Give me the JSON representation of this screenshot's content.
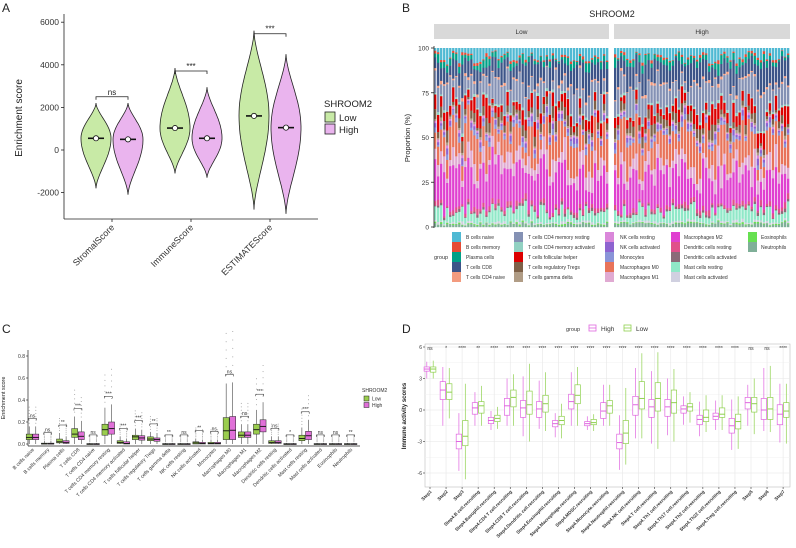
{
  "panels": {
    "a": "A",
    "b": "B",
    "c": "C",
    "d": "D"
  },
  "chart_data": [
    {
      "type": "violin",
      "panel": "A",
      "ylabel": "Enrichment score",
      "ylim": [
        -3000,
        6200
      ],
      "yticks": [
        -2000,
        0,
        2000,
        4000,
        6000
      ],
      "categories": [
        "StromalScore",
        "ImmuneScore",
        "ESTIMATEScore"
      ],
      "legend": {
        "title": "SHROOM2",
        "entries": [
          "Low",
          "High"
        ],
        "placement": "right"
      },
      "colors": {
        "Low": "#C8EAA6",
        "High": "#EAB4EE"
      },
      "significance": [
        "ns",
        "***",
        "***"
      ],
      "series": [
        {
          "name": "Low",
          "min": [
            -1800,
            -1100,
            -2800
          ],
          "median": [
            550,
            1030,
            1600
          ],
          "max": [
            2200,
            3850,
            5600
          ]
        },
        {
          "name": "High",
          "min": [
            -2100,
            -1300,
            -3000
          ],
          "median": [
            500,
            550,
            1050
          ],
          "max": [
            2200,
            2950,
            4500
          ]
        }
      ]
    },
    {
      "type": "stacked-bar",
      "panel": "B",
      "title": "SHROOM2",
      "facets": [
        "Low",
        "High"
      ],
      "ylabel": "Proportion (%)",
      "ylim": [
        0,
        100
      ],
      "yticks": [
        0,
        25,
        50,
        75,
        100
      ],
      "legend_title": "group",
      "cell_types": [
        {
          "name": "B cells naive",
          "color": "#4FB9D3",
          "mean": 5
        },
        {
          "name": "B cells memory",
          "color": "#E64B35",
          "mean": 1
        },
        {
          "name": "Plasma cells",
          "color": "#00A087",
          "mean": 3
        },
        {
          "name": "T cells CD8",
          "color": "#3C5488",
          "mean": 10
        },
        {
          "name": "T cells CD4 naive",
          "color": "#F39B7F",
          "mean": 1
        },
        {
          "name": "T cells CD4 memory resting",
          "color": "#8491B4",
          "mean": 12
        },
        {
          "name": "T cells CD4 memory activated",
          "color": "#91D1C2",
          "mean": 1
        },
        {
          "name": "T cells follicular helper",
          "color": "#DC0000",
          "mean": 6
        },
        {
          "name": "T cells regulatory Tregs",
          "color": "#7E6148",
          "mean": 4
        },
        {
          "name": "T cells gamma delta",
          "color": "#B09C85",
          "mean": 1
        },
        {
          "name": "NK cells resting",
          "color": "#DA87DA",
          "mean": 1
        },
        {
          "name": "NK cells activated",
          "color": "#8E63D0",
          "mean": 2
        },
        {
          "name": "Monocytes",
          "color": "#8A94D8",
          "mean": 2
        },
        {
          "name": "Macrophages M0",
          "color": "#E8735A",
          "mean": 14
        },
        {
          "name": "Macrophages M1",
          "color": "#E0AAD2",
          "mean": 7
        },
        {
          "name": "Macrophages M2",
          "color": "#E040D0",
          "mean": 18
        },
        {
          "name": "Dendritic cells resting",
          "color": "#E0508A",
          "mean": 2
        },
        {
          "name": "Dendritic cells activated",
          "color": "#8B6A78",
          "mean": 1
        },
        {
          "name": "Mast cells resting",
          "color": "#90E8C8",
          "mean": 6
        },
        {
          "name": "Mast cells activated",
          "color": "#D0D0E0",
          "mean": 1
        },
        {
          "name": "Eosinophils",
          "color": "#66E050",
          "mean": 0.5
        },
        {
          "name": "Neutrophils",
          "color": "#7FAF98",
          "mean": 1.5
        }
      ]
    },
    {
      "type": "box",
      "panel": "C",
      "ylabel": "Enrichment score",
      "ylim": [
        0,
        0.82
      ],
      "yticks": [
        "0.0",
        "0.2",
        "0.4",
        "0.6",
        "0.8"
      ],
      "legend": {
        "title": "SHROOM2",
        "entries": [
          "Low",
          "High"
        ],
        "placement": "right"
      },
      "colors": {
        "Low": "#9ACD4E",
        "High": "#E070D8"
      },
      "categories": [
        "B cells naive",
        "B cells memory",
        "Plasma cells",
        "T cells CD8",
        "T cells CD4 naive",
        "T cells CD4 memory resting",
        "T cells CD4 memory activated",
        "T cells follicular helper",
        "T cells regulatory Tregs",
        "T cells gamma delta",
        "NK cells resting",
        "NK cells activated",
        "Monocytes",
        "Macrophages M0",
        "Macrophages M1",
        "Macrophages M2",
        "Dendritic cells resting",
        "Dendritic cells activated",
        "Mast cells resting",
        "Mast cells activated",
        "Eosinophils",
        "Neutrophils"
      ],
      "significance": [
        "ns",
        "ns",
        "**",
        "***",
        "ns",
        "***",
        "***",
        "***",
        "**",
        "**",
        "ns",
        "**",
        "ns",
        "ns",
        "ns",
        "***",
        "ns",
        "*",
        "***",
        "ns",
        "ns",
        "**"
      ],
      "series": [
        {
          "name": "Low",
          "q1_med_q3_max": [
            [
              0.04,
              0.06,
              0.09,
              0.16
            ],
            [
              0,
              0.002,
              0.008,
              0.03
            ],
            [
              0.01,
              0.02,
              0.045,
              0.1
            ],
            [
              0.06,
              0.09,
              0.14,
              0.25
            ],
            [
              0,
              0,
              0.004,
              0.01
            ],
            [
              0.08,
              0.13,
              0.18,
              0.33
            ],
            [
              0.005,
              0.015,
              0.03,
              0.07
            ],
            [
              0.04,
              0.065,
              0.08,
              0.14
            ],
            [
              0.03,
              0.045,
              0.065,
              0.11
            ],
            [
              0,
              0,
              0.004,
              0.01
            ],
            [
              0,
              0,
              0.004,
              0.01
            ],
            [
              0,
              0.01,
              0.02,
              0.05
            ],
            [
              0,
              0.005,
              0.015,
              0.04
            ],
            [
              0.04,
              0.12,
              0.24,
              0.55
            ],
            [
              0.06,
              0.08,
              0.11,
              0.18
            ],
            [
              0.09,
              0.13,
              0.18,
              0.31
            ],
            [
              0.005,
              0.015,
              0.03,
              0.07
            ],
            [
              0,
              0,
              0.004,
              0.01
            ],
            [
              0.03,
              0.05,
              0.08,
              0.15
            ],
            [
              0,
              0,
              0.004,
              0.01
            ],
            [
              0,
              0,
              0.004,
              0.01
            ],
            [
              0,
              0,
              0.004,
              0.01
            ]
          ]
        },
        {
          "name": "High",
          "q1_med_q3_max": [
            [
              0.04,
              0.06,
              0.09,
              0.16
            ],
            [
              0,
              0.002,
              0.008,
              0.03
            ],
            [
              0.005,
              0.015,
              0.03,
              0.07
            ],
            [
              0.04,
              0.07,
              0.11,
              0.21
            ],
            [
              0,
              0,
              0.004,
              0.01
            ],
            [
              0.09,
              0.14,
              0.2,
              0.36
            ],
            [
              0,
              0.005,
              0.02,
              0.05
            ],
            [
              0.035,
              0.055,
              0.075,
              0.13
            ],
            [
              0.025,
              0.04,
              0.055,
              0.1
            ],
            [
              0,
              0,
              0.004,
              0.01
            ],
            [
              0,
              0,
              0.004,
              0.01
            ],
            [
              0,
              0.005,
              0.015,
              0.04
            ],
            [
              0,
              0.005,
              0.015,
              0.04
            ],
            [
              0.04,
              0.125,
              0.25,
              0.56
            ],
            [
              0.06,
              0.08,
              0.11,
              0.18
            ],
            [
              0.11,
              0.16,
              0.22,
              0.38
            ],
            [
              0.005,
              0.015,
              0.03,
              0.07
            ],
            [
              0,
              0,
              0.004,
              0.01
            ],
            [
              0.04,
              0.075,
              0.115,
              0.22
            ],
            [
              0,
              0,
              0.004,
              0.01
            ],
            [
              0,
              0,
              0.004,
              0.01
            ],
            [
              0,
              0,
              0.004,
              0.01
            ]
          ]
        }
      ]
    },
    {
      "type": "box",
      "panel": "D",
      "ylabel": "Immune activity scores",
      "ylim": [
        -7,
        6.2
      ],
      "yticks": [
        -6,
        -3,
        0,
        3,
        6
      ],
      "grid": true,
      "legend": {
        "title": "group",
        "entries": [
          "High",
          "Low"
        ],
        "placement": "top"
      },
      "colors": {
        "High": "#E066E0",
        "Low": "#8FD14F"
      },
      "categories": [
        "Step1",
        "Step2",
        "Step3",
        "Step4.B cell.recruiting",
        "Step4.Basophil.recruiting",
        "Step4.CD4 T cell.recruiting",
        "Step4.CD8 T cell.recruiting",
        "Step4.Dendritic cell.recruiting",
        "Step4.Eosinophil.recruiting",
        "Step4.Macrophage.recruiting",
        "Step4.MDSC.recruiting",
        "Step4.Monocyte.recruiting",
        "Step4.Neutrophil.recruiting",
        "Step4.NK cell.recruiting",
        "Step4.T cell.recruiting",
        "Step4.Th1 cell.recruiting",
        "Step4.Th17 cell.recruiting",
        "Step4.Th2 cell.recruiting",
        "Step4.Th22 cell.recruiting",
        "Step4.Treg cell.recruiting",
        "Step5",
        "Step6",
        "Step7"
      ],
      "significance": [
        "ns",
        "*",
        "****",
        "**",
        "****",
        "****",
        "****",
        "****",
        "****",
        "****",
        "****",
        "****",
        "****",
        "****",
        "****",
        "****",
        "****",
        "****",
        "****",
        "****",
        "ns",
        "ns",
        "****"
      ],
      "series": [
        {
          "name": "High",
          "min_q1_med_q3_max": [
            [
              3,
              3.7,
              3.9,
              4.1,
              4.6
            ],
            [
              -1.5,
              1,
              1.9,
              2.7,
              4.1
            ],
            [
              -5.8,
              -3.7,
              -3,
              -2.3,
              -0.3
            ],
            [
              -1.5,
              -0.4,
              0.2,
              0.7,
              1.7
            ],
            [
              -1.9,
              -1.3,
              -1,
              -0.7,
              -0.1
            ],
            [
              -1.5,
              -0.5,
              0.4,
              1.1,
              3
            ],
            [
              -2.5,
              -0.7,
              0.2,
              0.9,
              3.2
            ],
            [
              -1.8,
              -0.7,
              0.1,
              0.8,
              2.8
            ],
            [
              -2.6,
              -1.6,
              -1.3,
              -1,
              -0.3
            ],
            [
              -1.5,
              0.1,
              0.8,
              1.5,
              3.6
            ],
            [
              -1.9,
              -1.5,
              -1.3,
              -1.1,
              -0.6
            ],
            [
              -1.5,
              -0.8,
              -0.1,
              0.7,
              2.4
            ],
            [
              -5.7,
              -3.7,
              -3.1,
              -2.3,
              -0.5
            ],
            [
              -2.7,
              -0.5,
              0.5,
              1.3,
              4
            ],
            [
              -3.2,
              -0.7,
              0.3,
              1,
              3.7
            ],
            [
              -2.4,
              -0.6,
              0.3,
              1,
              3
            ],
            [
              -1.4,
              -0.3,
              0.1,
              0.4,
              1.3
            ],
            [
              -2.5,
              -1.4,
              -0.9,
              -0.5,
              0.8
            ],
            [
              -1.9,
              -0.9,
              -0.6,
              -0.3,
              0.9
            ],
            [
              -3.8,
              -2.2,
              -1.5,
              -0.8,
              1
            ],
            [
              -1.5,
              0.1,
              0.7,
              1.2,
              2.4
            ],
            [
              -2,
              -0.9,
              0,
              1.1,
              4
            ],
            [
              -3.1,
              -1.4,
              -0.4,
              0.5,
              2.5
            ]
          ]
        },
        {
          "name": "Low",
          "min_q1_med_q3_max": [
            [
              3,
              3.6,
              3.9,
              4.1,
              4.7
            ],
            [
              -0.8,
              1,
              1.7,
              2.5,
              4
            ],
            [
              -6.6,
              -3.4,
              -2.5,
              -1,
              2.5
            ],
            [
              -1.5,
              -0.3,
              0.4,
              0.8,
              2.3
            ],
            [
              -1.8,
              -1.1,
              -0.8,
              -0.5,
              0.3
            ],
            [
              -1.5,
              0.3,
              1.2,
              1.9,
              3.4
            ],
            [
              -3,
              -0.4,
              0.5,
              1.8,
              4.4
            ],
            [
              -2,
              -0.2,
              0.6,
              1.4,
              3.6
            ],
            [
              -2.7,
              -1.4,
              -1,
              -0.6,
              0.6
            ],
            [
              -1.5,
              0.6,
              1.4,
              2.4,
              4.1
            ],
            [
              -2,
              -1.4,
              -1.2,
              -0.9,
              -0.4
            ],
            [
              -1.5,
              -0.3,
              0.4,
              0.9,
              2.4
            ],
            [
              -5.2,
              -3.2,
              -2.2,
              -1,
              2.1
            ],
            [
              -2.7,
              0.1,
              1.1,
              2.7,
              5.4
            ],
            [
              -3.7,
              -0.1,
              1.1,
              2.6,
              5.5
            ],
            [
              -3,
              -0.3,
              0.7,
              1.9,
              3.9
            ],
            [
              -1.2,
              -0.1,
              0.3,
              0.6,
              1.7
            ],
            [
              -2.1,
              -1.1,
              -0.7,
              0,
              1.4
            ],
            [
              -1.9,
              -0.7,
              -0.4,
              0.2,
              1.4
            ],
            [
              -3.7,
              -1.8,
              -1.1,
              -0.4,
              1.3
            ],
            [
              -2.3,
              -0.2,
              0.6,
              1.2,
              3
            ],
            [
              -2.1,
              -0.9,
              0.1,
              1.2,
              4.2
            ],
            [
              -3.2,
              -0.7,
              -0.1,
              0.7,
              2.5
            ]
          ]
        }
      ]
    }
  ]
}
